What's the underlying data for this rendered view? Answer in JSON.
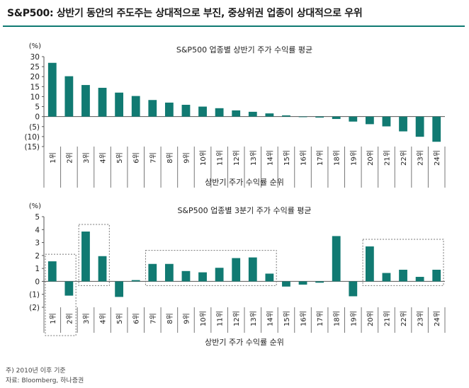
{
  "header": {
    "title": "S&P500: 상반기 동안의 주도주는 상대적으로 부진, 중상위권 업종이 상대적으로 우위"
  },
  "footnotes": {
    "note": "주) 2010년 이후 기준",
    "source": "자료: Bloomberg, 하나증권"
  },
  "chart_data": [
    {
      "type": "bar",
      "title": "S&P500 업종별 상반기 주가 수익률 평균",
      "unit_label": "(%)",
      "xlabel": "상반기 주가 수익률 순위",
      "ylabel": "",
      "ylim": [
        -15,
        30
      ],
      "yticks": [
        30,
        25,
        20,
        15,
        10,
        5,
        0,
        -5,
        -10,
        -15
      ],
      "ytick_labels": [
        "30",
        "25",
        "20",
        "15",
        "10",
        "5",
        "0",
        "(5)",
        "(10)",
        "(15)"
      ],
      "color": "#117a72",
      "categories": [
        "1위",
        "2위",
        "3위",
        "4위",
        "5위",
        "6위",
        "7위",
        "8위",
        "9위",
        "10위",
        "11위",
        "12위",
        "13위",
        "14위",
        "15위",
        "16위",
        "17위",
        "18위",
        "19위",
        "20위",
        "21위",
        "22위",
        "23위",
        "24위"
      ],
      "values": [
        26.9,
        20.2,
        15.8,
        14.4,
        12.0,
        10.3,
        8.3,
        7.0,
        5.9,
        5.0,
        4.2,
        3.1,
        2.4,
        1.6,
        0.6,
        0.0,
        -0.5,
        -1.2,
        -2.5,
        -3.8,
        -4.9,
        -7.4,
        -10.1,
        -12.6
      ],
      "grid": false,
      "legend": "none"
    },
    {
      "type": "bar",
      "title": "S&P500 업종별 3분기 주가 수익률 평균",
      "unit_label": "(%)",
      "xlabel": "상반기 주가 수익률 순위",
      "ylabel": "",
      "ylim": [
        -2,
        5
      ],
      "yticks": [
        5,
        4,
        3,
        2,
        1,
        0,
        -1,
        -2
      ],
      "ytick_labels": [
        "5",
        "4",
        "3",
        "2",
        "1",
        "0",
        "(1)",
        "(2)"
      ],
      "color": "#117a72",
      "categories": [
        "1위",
        "2위",
        "3위",
        "4위",
        "5위",
        "6위",
        "7위",
        "8위",
        "9위",
        "10위",
        "11위",
        "12위",
        "13위",
        "14위",
        "15위",
        "16위",
        "17위",
        "18위",
        "19위",
        "20위",
        "21위",
        "22위",
        "23위",
        "24위"
      ],
      "values": [
        1.55,
        -1.1,
        3.85,
        1.95,
        -1.2,
        0.1,
        1.35,
        1.35,
        0.8,
        0.7,
        1.05,
        1.8,
        1.85,
        0.6,
        -0.4,
        -0.25,
        -0.1,
        3.5,
        -1.15,
        2.7,
        0.65,
        0.9,
        0.35,
        0.9
      ],
      "highlight_groups": [
        [
          1,
          2
        ],
        [
          3,
          4
        ],
        [
          7,
          14
        ],
        [
          20,
          24
        ]
      ],
      "grid": false,
      "legend": "none"
    }
  ]
}
